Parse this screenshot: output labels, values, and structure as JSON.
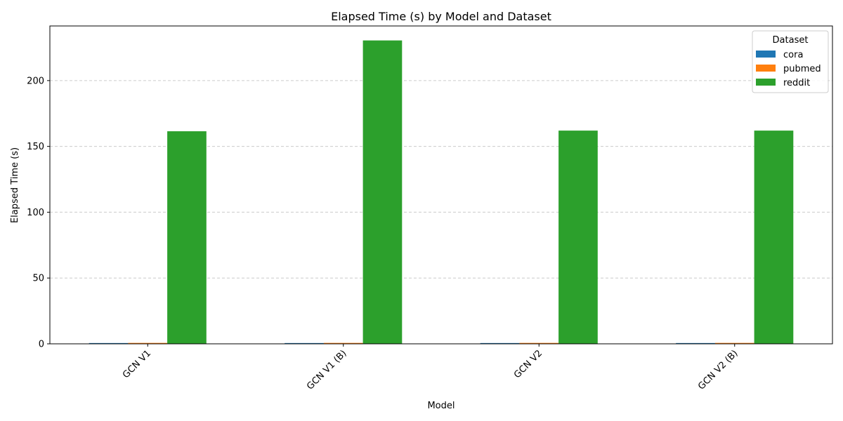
{
  "chart_data": {
    "type": "bar",
    "title": "Elapsed Time (s) by Model and Dataset",
    "xlabel": "Model",
    "ylabel": "Elapsed Time (s)",
    "categories": [
      "GCN V1",
      "GCN V1 (B)",
      "GCN V2",
      "GCN V2 (B)"
    ],
    "series": [
      {
        "name": "cora",
        "color": "#1f77b4",
        "values": [
          0.6,
          0.6,
          0.6,
          0.6
        ]
      },
      {
        "name": "pubmed",
        "color": "#ff7f0e",
        "values": [
          0.7,
          0.7,
          0.7,
          0.7
        ]
      },
      {
        "name": "reddit",
        "color": "#2ca02c",
        "values": [
          161.5,
          230.5,
          162.0,
          162.0
        ]
      }
    ],
    "ylim": [
      0,
      241.5
    ],
    "yticks": [
      0,
      50,
      100,
      150,
      200
    ],
    "grid": "y, dashed",
    "legend": {
      "title": "Dataset",
      "placement": "top-right"
    }
  }
}
